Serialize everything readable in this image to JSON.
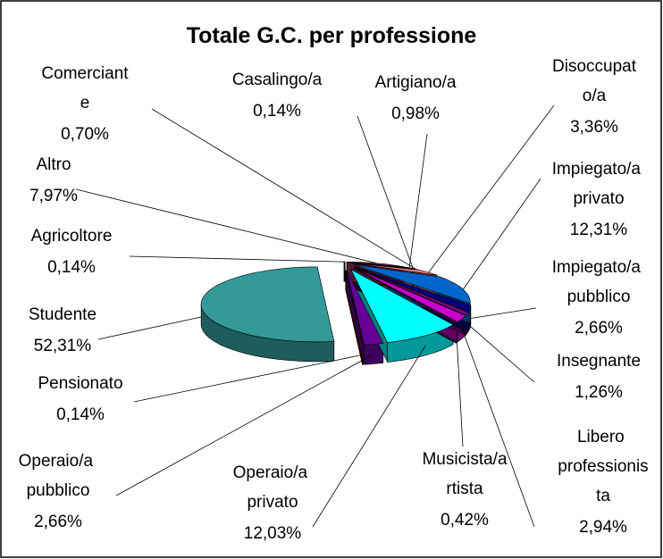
{
  "chart_data": {
    "type": "pie",
    "title": "Totale G.C. per professione",
    "categories": [
      "Agricoltore",
      "Altro",
      "Artigiano/a",
      "Casalingo/a",
      "Comerciante",
      "Disoccupato/a",
      "Impiegato/a privato",
      "Impiegato/a pubblico",
      "Insegnante",
      "Libero professionista",
      "Musicista/artista",
      "Operaio/a privato",
      "Operaio/a pubblico",
      "Pensionato",
      "Studente"
    ],
    "values": [
      0.14,
      7.97,
      0.98,
      0.14,
      0.7,
      3.36,
      12.31,
      2.66,
      1.26,
      2.94,
      0.42,
      12.03,
      2.66,
      0.14,
      52.31
    ],
    "value_labels": [
      "0,14%",
      "7,97%",
      "0,98%",
      "0,14%",
      "0,70%",
      "3,36%",
      "12,31%",
      "2,66%",
      "1,26%",
      "2,94%",
      "0,42%",
      "12,03%",
      "2,66%",
      "0,14%",
      "52,31%"
    ],
    "colors": [
      "#111111",
      "#993366",
      "#ff9999",
      "#cc6666",
      "#ff6666",
      "#ff7f7f",
      "#0066cc",
      "#000080",
      "#800080",
      "#cc00cc",
      "#660066",
      "#00ffff",
      "#660099",
      "#800000",
      "#339999"
    ]
  }
}
